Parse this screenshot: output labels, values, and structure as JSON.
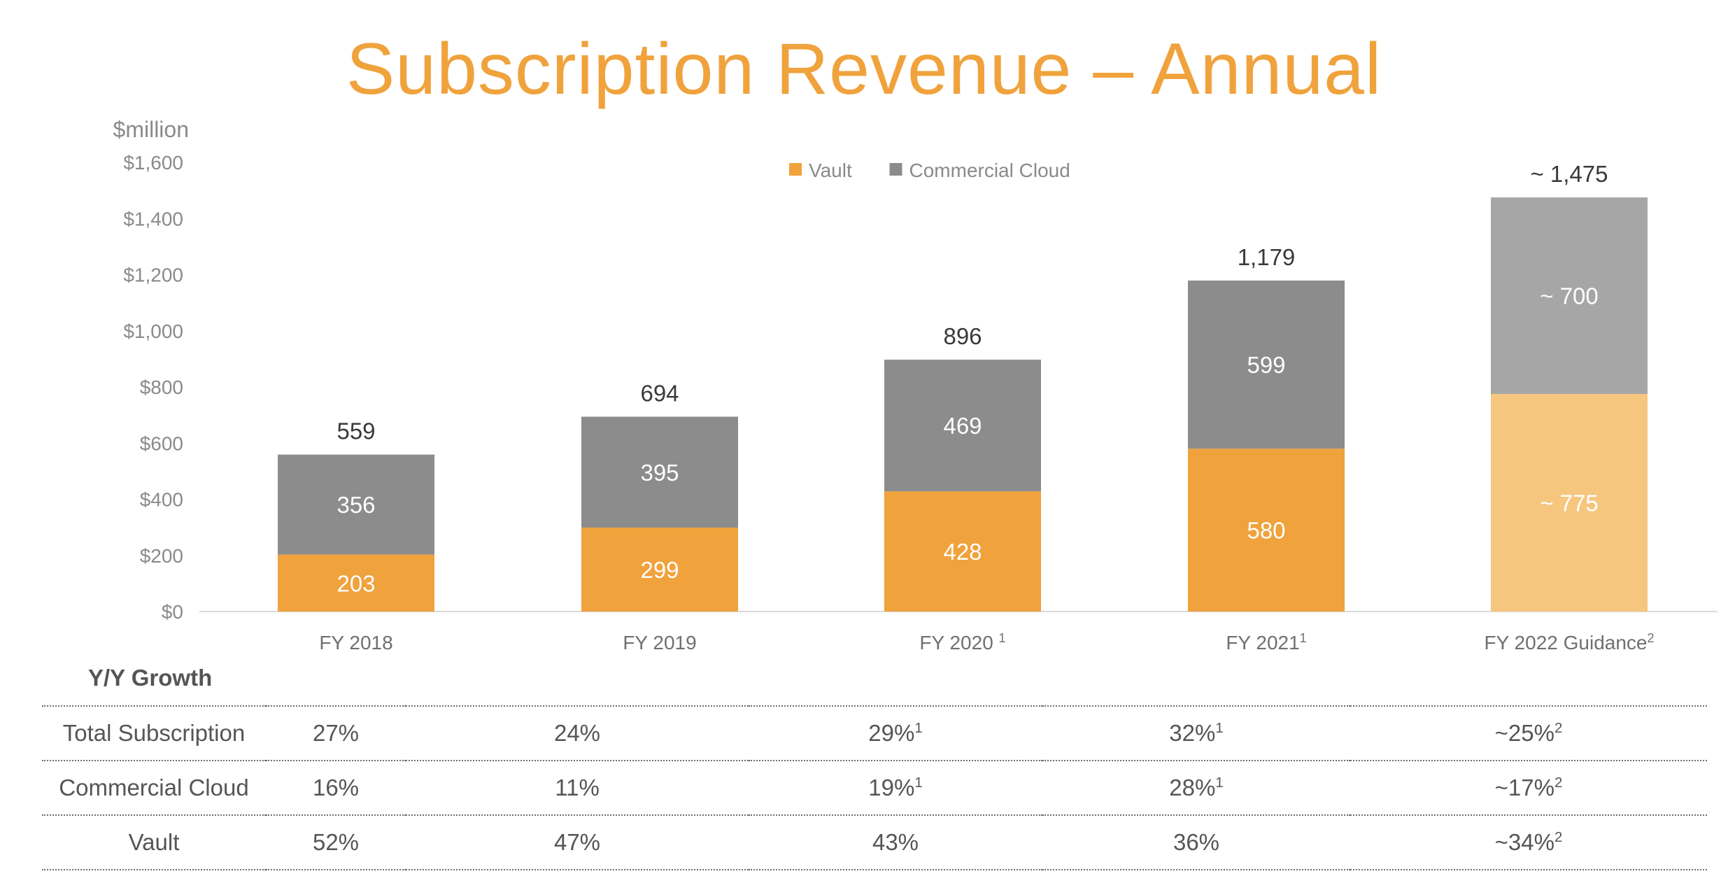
{
  "chart_data": {
    "type": "bar",
    "stacked": true,
    "title": "Subscription Revenue – Annual",
    "unit_label": "$million",
    "ylim": [
      0,
      1600
    ],
    "yticks": [
      "$0",
      "$200",
      "$400",
      "$600",
      "$800",
      "$1,000",
      "$1,200",
      "$1,400",
      "$1,600"
    ],
    "ytick_values": [
      0,
      200,
      400,
      600,
      800,
      1000,
      1200,
      1400,
      1600
    ],
    "legend_position": "top-center",
    "categories": [
      {
        "label": "FY 2018",
        "sup": ""
      },
      {
        "label": "FY 2019",
        "sup": ""
      },
      {
        "label": "FY 2020 ",
        "sup": "1"
      },
      {
        "label": "FY 2021",
        "sup": "1"
      },
      {
        "label": "FY 2022 Guidance",
        "sup": "2"
      }
    ],
    "series": [
      {
        "name": "Vault",
        "color": "#F0A23C",
        "estimate_color": "#F6C67F",
        "values": [
          203,
          299,
          428,
          580,
          775
        ],
        "labels": [
          "203",
          "299",
          "428",
          "580",
          "~ 775"
        ]
      },
      {
        "name": "Commercial Cloud",
        "color": "#8C8C8C",
        "estimate_color": "#A6A6A6",
        "values": [
          356,
          395,
          469,
          599,
          700
        ],
        "labels": [
          "356",
          "395",
          "469",
          "599",
          "~ 700"
        ]
      }
    ],
    "totals": [
      559,
      694,
      896,
      1179,
      1475
    ],
    "total_labels": [
      "559",
      "694",
      "896",
      "1,179",
      "~ 1,475"
    ],
    "estimate_index": 4
  },
  "growth": {
    "title": "Y/Y Growth",
    "rows": [
      {
        "label": "Total Subscription",
        "cells": [
          {
            "v": "27%",
            "s": ""
          },
          {
            "v": "24%",
            "s": ""
          },
          {
            "v": "29%",
            "s": "1"
          },
          {
            "v": "32%",
            "s": "1"
          },
          {
            "v": "~25%",
            "s": "2"
          }
        ]
      },
      {
        "label": "Commercial Cloud",
        "cells": [
          {
            "v": "16%",
            "s": ""
          },
          {
            "v": "11%",
            "s": ""
          },
          {
            "v": "19%",
            "s": "1"
          },
          {
            "v": "28%",
            "s": "1"
          },
          {
            "v": "~17%",
            "s": "2"
          }
        ]
      },
      {
        "label": "Vault",
        "cells": [
          {
            "v": "52%",
            "s": ""
          },
          {
            "v": "47%",
            "s": ""
          },
          {
            "v": "43%",
            "s": ""
          },
          {
            "v": "36%",
            "s": ""
          },
          {
            "v": "~34%",
            "s": "2"
          }
        ]
      }
    ]
  }
}
